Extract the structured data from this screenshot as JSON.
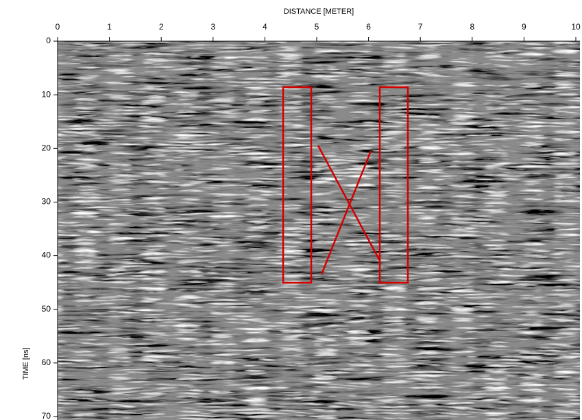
{
  "chart_data": {
    "type": "radargram",
    "xlabel": "DISTANCE [METER]",
    "ylabel": "TIME [ns]",
    "xlim": [
      0,
      10
    ],
    "xticks": [
      0,
      1,
      2,
      3,
      4,
      5,
      6,
      7,
      8,
      9,
      10
    ],
    "ylim": [
      0,
      70
    ],
    "yticks": [
      0,
      10,
      20,
      30,
      40,
      50,
      60,
      70
    ]
  }
}
